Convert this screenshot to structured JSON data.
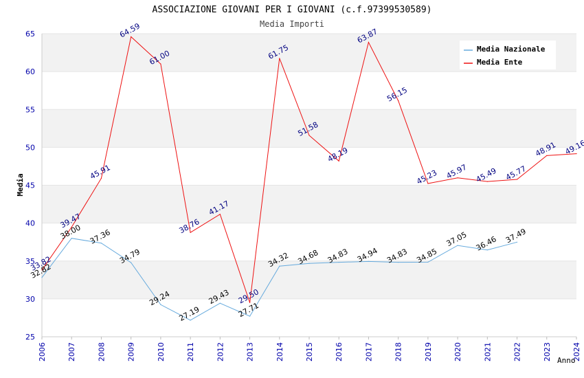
{
  "chart_data": {
    "type": "line",
    "title": "ASSOCIAZIONE GIOVANI PER I GIOVANI (c.f.97399530589)",
    "subtitle": "Media Importi",
    "xlabel": "Anno",
    "ylabel": "Media",
    "ylim": [
      25,
      65
    ],
    "yticks": [
      "25",
      "30",
      "35",
      "40",
      "45",
      "50",
      "55",
      "60",
      "65"
    ],
    "x": [
      "2006",
      "2007",
      "2008",
      "2009",
      "2010",
      "2011",
      "2012",
      "2013",
      "2014",
      "2015",
      "2016",
      "2017",
      "2018",
      "2019",
      "2020",
      "2021",
      "2022",
      "2023",
      "2024"
    ],
    "legend_position": "top-right",
    "grid": true,
    "series": [
      {
        "name": "Media Nazionale",
        "color": "#66aadd",
        "label_color": "#000000",
        "values": [
          32.82,
          38.0,
          37.36,
          34.79,
          29.24,
          27.19,
          29.43,
          27.71,
          34.32,
          34.68,
          34.83,
          34.94,
          34.83,
          34.85,
          37.05,
          36.46,
          37.49,
          null,
          null
        ],
        "labels": [
          "32.82",
          "38.00",
          "37.36",
          "34.79",
          "29.24",
          "27.19",
          "29.43",
          "27.71",
          "34.32",
          "34.68",
          "34.83",
          "34.94",
          "34.83",
          "34.85",
          "37.05",
          "36.46",
          "37.49",
          null,
          null
        ]
      },
      {
        "name": "Media Ente",
        "color": "#ee1111",
        "label_color": "#000080",
        "values": [
          33.82,
          39.47,
          45.91,
          64.59,
          61.0,
          38.76,
          41.17,
          29.5,
          61.75,
          51.58,
          48.19,
          63.87,
          56.15,
          45.23,
          45.97,
          45.49,
          45.77,
          48.91,
          49.16
        ],
        "labels": [
          "33.82",
          "39.47",
          "45.91",
          "64.59",
          "61.00",
          "38.76",
          "41.17",
          "29.50",
          "61.75",
          "51.58",
          "48.19",
          "63.87",
          "56.15",
          "45.23",
          "45.97",
          "45.49",
          "45.77",
          "48.91",
          "49.16"
        ]
      }
    ],
    "colors": {
      "tick_label": "#0000aa",
      "band": "#f2f2f2",
      "axis": "#cccccc"
    }
  }
}
